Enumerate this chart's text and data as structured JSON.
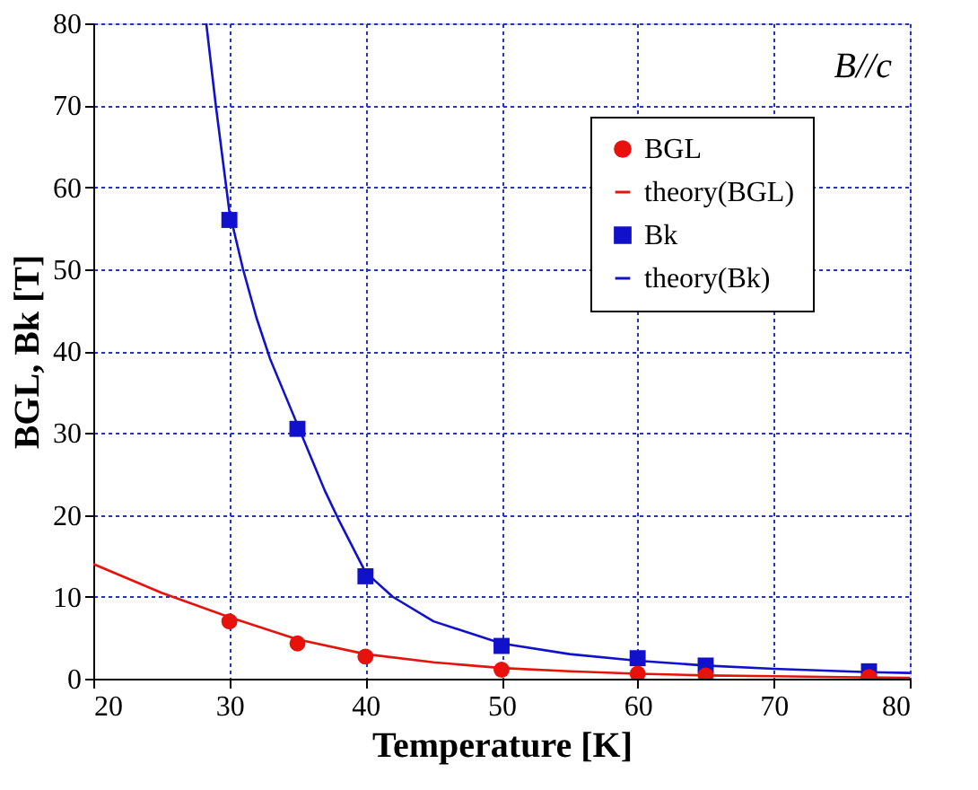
{
  "chart_data": {
    "type": "line",
    "xlabel": "Temperature [K]",
    "ylabel": "BGL, Bk [T]",
    "annotations": [
      "B//c"
    ],
    "xlim": [
      20,
      80
    ],
    "xticks": [
      20,
      30,
      40,
      50,
      60,
      70,
      80
    ],
    "ylim": [
      0,
      80
    ],
    "yticks": [
      0,
      10,
      20,
      30,
      40,
      50,
      60,
      70,
      80
    ],
    "grid": true,
    "legend": "top right",
    "series": [
      {
        "name": "BGL",
        "type": "scatter",
        "marker": "circle",
        "color": "#e8120c",
        "x": [
          30,
          35,
          40,
          50,
          60,
          65,
          77
        ],
        "values": [
          7.0,
          4.3,
          2.7,
          1.1,
          0.6,
          0.4,
          0.2
        ]
      },
      {
        "name": "theory(BGL)",
        "line_style": "solid",
        "color": "#e8120c",
        "x": [
          20,
          25,
          30,
          35,
          40,
          45,
          50,
          55,
          60,
          65,
          70,
          75,
          80
        ],
        "values": [
          14,
          10.5,
          7.5,
          4.8,
          3.0,
          2.0,
          1.3,
          0.9,
          0.6,
          0.4,
          0.3,
          0.2,
          0.1
        ]
      },
      {
        "name": "Bk",
        "type": "scatter",
        "marker": "square",
        "color": "#1111cc",
        "x": [
          30,
          35,
          40,
          50,
          60,
          65,
          77
        ],
        "values": [
          56,
          30.5,
          12.5,
          4.0,
          2.5,
          1.6,
          0.9
        ]
      },
      {
        "name": "theory(Bk)",
        "line_style": "solid",
        "color": "#1111cc",
        "x": [
          28.3,
          29,
          30,
          31,
          32,
          33,
          35,
          37,
          38,
          40,
          42,
          45,
          50,
          55,
          60,
          65,
          70,
          77,
          80
        ],
        "values": [
          80,
          70,
          57,
          50,
          44,
          39,
          31,
          23,
          19.5,
          13,
          10,
          7,
          4.3,
          3.0,
          2.2,
          1.6,
          1.2,
          0.8,
          0.7
        ]
      }
    ]
  }
}
